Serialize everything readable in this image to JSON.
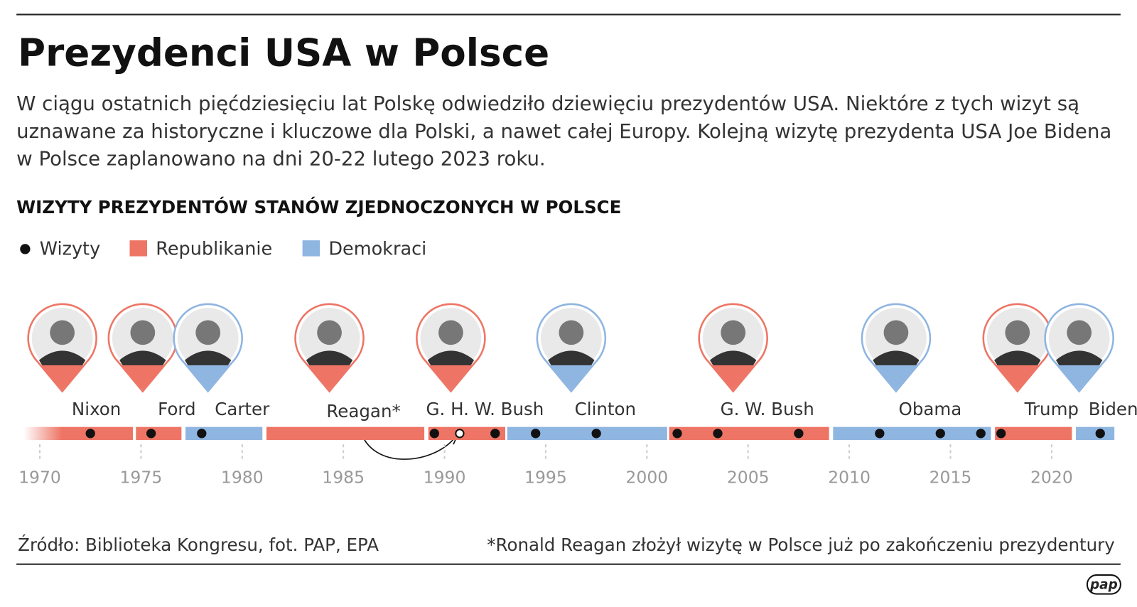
{
  "chart_data": {
    "type": "timeline",
    "title": "Prezydenci USA w Polsce",
    "description": [
      "W ciągu ostatnich pięćdziesięciu lat Polskę odwiedziło dziewięciu prezydentów USA. Niektóre z tych wizyt są",
      "uznawane za historyczne i kluczowe dla Polski, a nawet całej Europy. Kolejną wizytę prezydenta USA Joe Bidena",
      "w Polsce zaplanowano na dni 20-22 lutego 2023 roku."
    ],
    "subtitle": "WIZYTY PREZYDENTÓW STANÓW ZJEDNOCZONYCH W POLSCE",
    "xlim": [
      1968.2,
      2023.8
    ],
    "xticks": [
      1970,
      1975,
      1980,
      1985,
      1990,
      1995,
      2000,
      2005,
      2010,
      2015,
      2020
    ],
    "visits": {
      "name": "Wizyty",
      "color": "#111111",
      "points": [
        {
          "year": 1972.5,
          "style": "filled"
        },
        {
          "year": 1975.5,
          "style": "filled"
        },
        {
          "year": 1978,
          "style": "filled"
        },
        {
          "year": 1989.5,
          "style": "filled"
        },
        {
          "year": 1990.75,
          "style": "open"
        },
        {
          "year": 1992.5,
          "style": "filled"
        },
        {
          "year": 1994.5,
          "style": "filled"
        },
        {
          "year": 1997.5,
          "style": "filled"
        },
        {
          "year": 2001.5,
          "style": "filled"
        },
        {
          "year": 2003.5,
          "style": "filled"
        },
        {
          "year": 2007.5,
          "style": "filled"
        },
        {
          "year": 2011.5,
          "style": "filled"
        },
        {
          "year": 2014.5,
          "style": "filled"
        },
        {
          "year": 2016.5,
          "style": "filled"
        },
        {
          "year": 2017.5,
          "style": "filled"
        },
        {
          "year": 2022.4,
          "style": "filled"
        }
      ]
    },
    "series": [
      {
        "name": "Republikanie",
        "color": "#ee7565",
        "presidents": [
          {
            "name": "Nixon",
            "start": 1969.2,
            "end": 1974.6
          },
          {
            "name": "Ford",
            "start": 1974.75,
            "end": 1977
          },
          {
            "name": "Reagan*",
            "start": 1981.2,
            "end": 1989
          },
          {
            "name": "G. H. W. Bush",
            "start": 1989.2,
            "end": 1993
          },
          {
            "name": "G. W. Bush",
            "start": 2001.1,
            "end": 2009
          },
          {
            "name": "Trump",
            "start": 2017.2,
            "end": 2021
          }
        ]
      },
      {
        "name": "Demokraci",
        "color": "#8fb5e1",
        "presidents": [
          {
            "name": "Carter",
            "start": 1977.2,
            "end": 1981
          },
          {
            "name": "Clinton",
            "start": 1993.1,
            "end": 2001
          },
          {
            "name": "Obama",
            "start": 2009.2,
            "end": 2017
          },
          {
            "name": "Biden",
            "start": 2021.2,
            "end": 2023.1
          }
        ]
      }
    ],
    "source": "Źródło: Biblioteka Kongresu, fot. PAP, EPA",
    "footnote": "*Ronald Reagan złożył wizytę w Polsce już po zakończeniu prezydentury",
    "logo": "pap"
  }
}
